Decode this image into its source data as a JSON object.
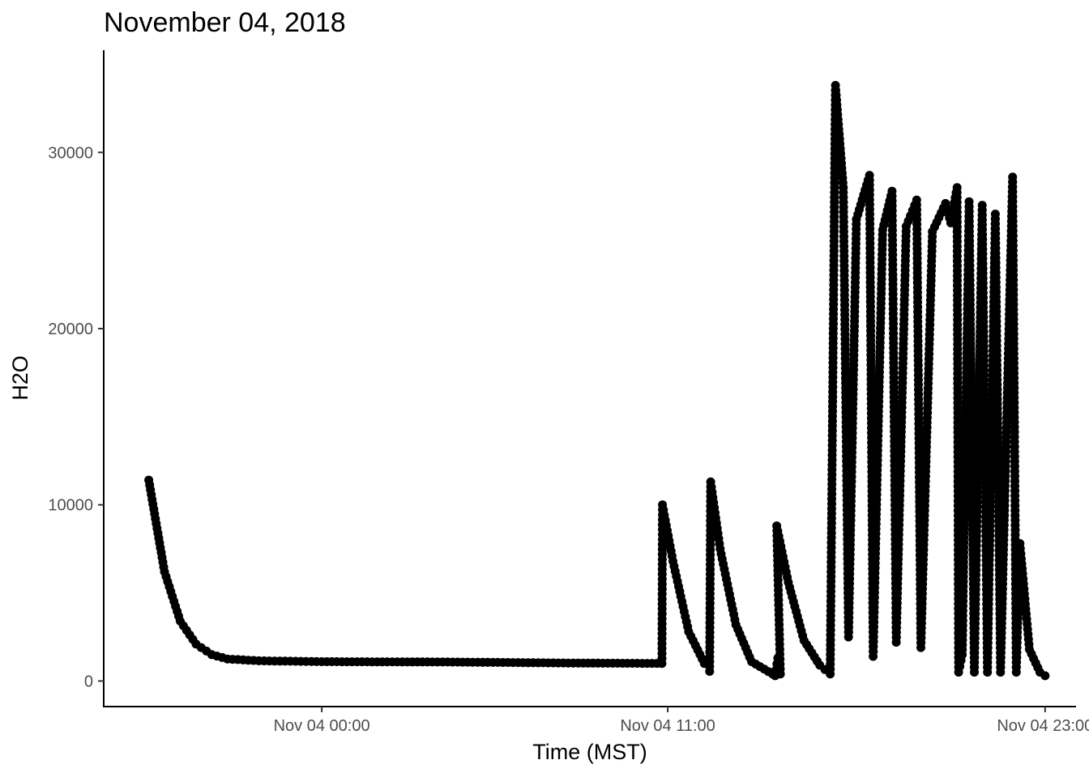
{
  "chart_data": {
    "type": "scatter",
    "title": "November 04, 2018",
    "xlabel": "Time (MST)",
    "ylabel": "H2O",
    "x_ticks": [
      "Nov 04 00:00",
      "Nov 04 11:00",
      "Nov 04 23:00"
    ],
    "y_ticks": [
      "0",
      "10000",
      "20000",
      "30000"
    ],
    "xlim": [
      "Nov 03 17:04",
      "Nov 04 23:59"
    ],
    "ylim": [
      -1450,
      35800
    ],
    "grid": false,
    "legend": "none",
    "point_color": "#000000",
    "series": [
      {
        "points": [
          [
            "Nov 03 18:30",
            11400
          ],
          [
            "Nov 03 19:00",
            6200
          ],
          [
            "Nov 03 19:30",
            3400
          ],
          [
            "Nov 03 20:00",
            2100
          ],
          [
            "Nov 03 20:30",
            1500
          ],
          [
            "Nov 03 21:00",
            1250
          ],
          [
            "Nov 03 22:00",
            1150
          ],
          [
            "Nov 04 00:00",
            1100
          ],
          [
            "Nov 04 04:00",
            1080
          ],
          [
            "Nov 04 08:00",
            1020
          ],
          [
            "Nov 04 10:49",
            1000
          ],
          [
            "Nov 04 10:50",
            10000
          ],
          [
            "Nov 04 11:10",
            6800
          ],
          [
            "Nov 04 11:40",
            2800
          ],
          [
            "Nov 04 12:10",
            1000
          ],
          [
            "Nov 04 12:20",
            550
          ],
          [
            "Nov 04 12:22",
            11300
          ],
          [
            "Nov 04 12:40",
            7500
          ],
          [
            "Nov 04 13:10",
            3200
          ],
          [
            "Nov 04 13:40",
            1100
          ],
          [
            "Nov 04 14:20",
            400
          ],
          [
            "Nov 04 14:25",
            300
          ],
          [
            "Nov 04 14:30",
            1300
          ],
          [
            "Nov 04 14:35",
            400
          ],
          [
            "Nov 04 14:28",
            8800
          ],
          [
            "Nov 04 14:50",
            5600
          ],
          [
            "Nov 04 15:20",
            2300
          ],
          [
            "Nov 04 15:50",
            900
          ],
          [
            "Nov 04 16:10",
            400
          ],
          [
            "Nov 04 16:20",
            33800
          ],
          [
            "Nov 04 16:35",
            28000
          ],
          [
            "Nov 04 16:45",
            2500
          ],
          [
            "Nov 04 17:00",
            26200
          ],
          [
            "Nov 04 17:25",
            28700
          ],
          [
            "Nov 04 17:32",
            1400
          ],
          [
            "Nov 04 17:50",
            25600
          ],
          [
            "Nov 04 18:08",
            27800
          ],
          [
            "Nov 04 18:16",
            2200
          ],
          [
            "Nov 04 18:35",
            25800
          ],
          [
            "Nov 04 18:55",
            27300
          ],
          [
            "Nov 04 19:03",
            1900
          ],
          [
            "Nov 04 19:25",
            25500
          ],
          [
            "Nov 04 19:50",
            27100
          ],
          [
            "Nov 04 20:00",
            26000
          ],
          [
            "Nov 04 20:12",
            28000
          ],
          [
            "Nov 04 20:15",
            500
          ],
          [
            "Nov 04 20:22",
            1500
          ],
          [
            "Nov 04 20:35",
            27200
          ],
          [
            "Nov 04 20:45",
            500
          ],
          [
            "Nov 04 21:00",
            27000
          ],
          [
            "Nov 04 21:10",
            500
          ],
          [
            "Nov 04 21:25",
            26500
          ],
          [
            "Nov 04 21:35",
            500
          ],
          [
            "Nov 04 21:58",
            28600
          ],
          [
            "Nov 04 22:05",
            500
          ],
          [
            "Nov 04 22:12",
            7800
          ],
          [
            "Nov 04 22:30",
            1800
          ],
          [
            "Nov 04 22:50",
            500
          ],
          [
            "Nov 04 23:00",
            300
          ]
        ]
      }
    ]
  }
}
